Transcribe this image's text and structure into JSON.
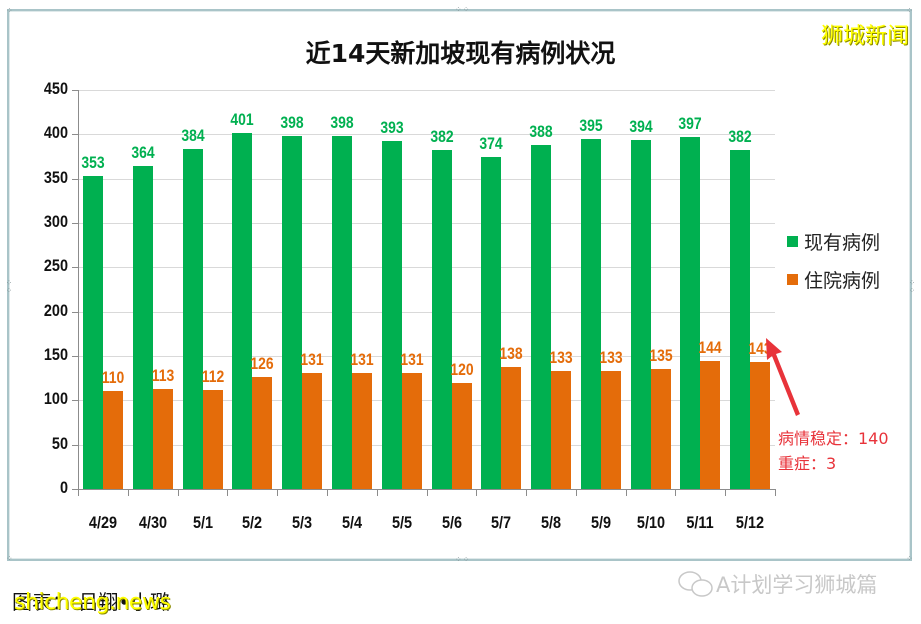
{
  "chart_data": {
    "type": "bar",
    "title": "近14天新加坡现有病例状况",
    "categories": [
      "4/29",
      "4/30",
      "5/1",
      "5/2",
      "5/3",
      "5/4",
      "5/5",
      "5/6",
      "5/7",
      "5/8",
      "5/9",
      "5/10",
      "5/11",
      "5/12"
    ],
    "series": [
      {
        "name": "现有病例",
        "color": "#00b050",
        "values": [
          353,
          364,
          384,
          401,
          398,
          398,
          393,
          382,
          374,
          388,
          395,
          394,
          397,
          382
        ]
      },
      {
        "name": "住院病例",
        "color": "#e46c0a",
        "values": [
          110,
          113,
          112,
          126,
          131,
          131,
          131,
          120,
          138,
          133,
          133,
          135,
          144,
          143
        ]
      }
    ],
    "xlabel": "",
    "ylabel": "",
    "ylim": [
      0,
      450
    ],
    "yticks": [
      0,
      50,
      100,
      150,
      200,
      250,
      300,
      350,
      400,
      450
    ],
    "grid": true,
    "legend_position": "right",
    "annotations": [
      {
        "target": "5/12 住院病例 143",
        "lines": [
          "病情稳定：140",
          "重症：3"
        ],
        "color": "#e8333a"
      }
    ]
  },
  "brand_watermark": "狮城新闻",
  "caption": "图表：  吕翔•小璐",
  "footer_watermark": "shicheng.news",
  "wechat_watermark": "A计划学习狮城篇"
}
